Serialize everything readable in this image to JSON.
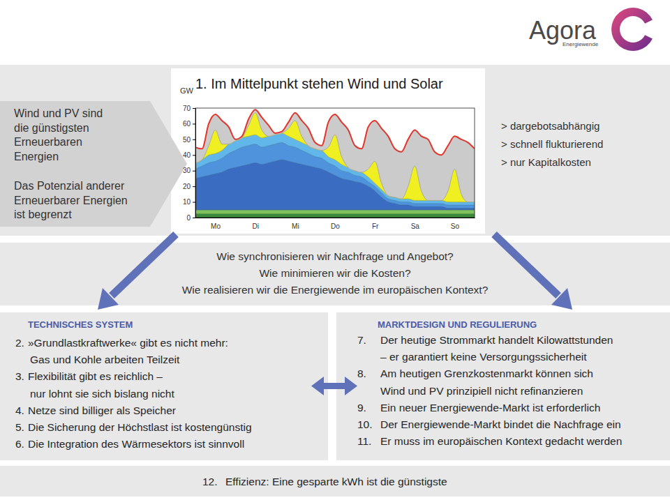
{
  "header": {
    "logo": "Agora",
    "logo_subtitle": "Energiewende"
  },
  "intro": {
    "paragraphs": [
      [
        "Wind und PV sind",
        "die günstigsten",
        "Erneuerbaren",
        "Energien"
      ],
      [
        "Das Potenzial anderer",
        "Erneuerbarer Energien",
        "ist begrenzt"
      ]
    ]
  },
  "chart_data": {
    "type": "area",
    "title": "1. Im Mittelpunkt stehen Wind und Solar",
    "y_label": "GW",
    "stacked": true,
    "x": [
      0,
      4,
      8,
      12,
      16,
      20,
      24,
      28,
      32,
      36,
      40,
      44,
      48,
      52,
      56,
      60,
      64,
      68,
      72,
      76,
      80,
      84,
      88,
      92,
      96,
      100,
      104,
      108,
      112,
      116,
      120,
      124,
      128,
      132,
      136,
      140,
      144,
      148,
      152,
      156,
      160,
      164,
      168
    ],
    "xlim": [
      0,
      168
    ],
    "xticks": [
      {
        "value": 12,
        "label": "Mo"
      },
      {
        "value": 36,
        "label": "Di"
      },
      {
        "value": 60,
        "label": "Mi"
      },
      {
        "value": 84,
        "label": "Do"
      },
      {
        "value": 108,
        "label": "Fr"
      },
      {
        "value": 132,
        "label": "Sa"
      },
      {
        "value": 156,
        "label": "So"
      }
    ],
    "ylim": [
      0,
      70
    ],
    "yticks": [
      0,
      10,
      20,
      30,
      40,
      50,
      60,
      70
    ],
    "series": [
      {
        "color": "#3b8a3b",
        "values": [
          2.5,
          2.5,
          2.5,
          2.5,
          2.5,
          2.5,
          2.5,
          2.5,
          2.5,
          2.5,
          2.5,
          2.5,
          2.5,
          2.5,
          2.5,
          2.5,
          2.5,
          2.5,
          2.5,
          2.5,
          2.5,
          2.5,
          2.5,
          2.5,
          2.5,
          2.5,
          2.5,
          2.5,
          2.5,
          2.5,
          2.5,
          2.5,
          2.5,
          2.5,
          2.5,
          2.5,
          2.5,
          2.5,
          2.5,
          2.5,
          2.5,
          2.5,
          2.5
        ]
      },
      {
        "color": "#7fc35f",
        "values": [
          2.5,
          2.5,
          2.5,
          2.5,
          2.5,
          2.5,
          2.5,
          2.5,
          2.5,
          2.5,
          2.5,
          2.5,
          2.5,
          2.5,
          2.5,
          2.5,
          2.5,
          2.5,
          2.5,
          2.5,
          2.5,
          2.5,
          2.5,
          2.5,
          2.5,
          2.5,
          2.5,
          2.5,
          2.5,
          2.5,
          2.5,
          2.5,
          2.5,
          2.5,
          2.5,
          2.5,
          2.5,
          2.5,
          2.5,
          2.5,
          2.5,
          2.5,
          2.5
        ]
      },
      {
        "color": "#3a6cc2",
        "values": [
          20,
          21,
          22,
          23,
          24,
          26,
          27,
          28,
          29,
          30,
          29,
          30,
          31,
          32,
          31,
          30,
          29,
          28,
          27,
          26,
          24,
          22,
          20,
          19,
          18,
          17,
          15,
          12,
          8,
          5,
          4,
          3,
          3,
          2,
          2,
          2,
          2,
          2,
          1,
          1,
          1,
          1,
          1
        ]
      },
      {
        "color": "#4e93dc",
        "values": [
          6,
          7,
          8,
          8,
          9,
          10,
          11,
          12,
          12,
          12,
          11,
          11,
          11,
          11,
          10,
          10,
          9,
          8,
          7,
          7,
          6,
          6,
          5,
          5,
          4,
          4,
          3,
          3,
          3,
          2,
          2,
          2,
          2,
          2,
          2,
          2,
          2,
          2,
          2,
          2,
          2,
          2,
          2
        ]
      },
      {
        "color": "#62b7ea",
        "values": [
          4,
          4,
          5,
          5,
          5,
          6,
          6,
          6,
          6,
          6,
          6,
          6,
          6,
          6,
          6,
          5,
          5,
          5,
          5,
          5,
          4,
          4,
          4,
          3,
          3,
          3,
          3,
          2,
          2,
          2,
          2,
          2,
          2,
          2,
          2,
          2,
          2,
          2,
          2,
          2,
          2,
          2,
          2
        ]
      },
      {
        "color": "#f0ef22",
        "values": [
          0,
          0,
          6,
          15,
          4,
          0,
          0,
          0,
          7,
          14,
          5,
          0,
          0,
          0,
          5,
          12,
          4,
          0,
          0,
          0,
          6,
          16,
          5,
          0,
          0,
          0,
          5,
          14,
          4,
          0,
          0,
          0,
          8,
          22,
          6,
          0,
          0,
          0,
          7,
          21,
          5,
          0,
          0
        ]
      },
      {
        "color": "#cbcbcb",
        "values": [
          10,
          7,
          14,
          10,
          15,
          11,
          1,
          1,
          4,
          2,
          8,
          7,
          1,
          1,
          4,
          5,
          10,
          11,
          4,
          3,
          16,
          13,
          22,
          24,
          16,
          15,
          27,
          26,
          35,
          38,
          31,
          30,
          30,
          23,
          35,
          39,
          31,
          29,
          29,
          21,
          35,
          38,
          34
        ]
      },
      {
        "type": "line",
        "color": "#e2352b",
        "values": [
          45,
          44,
          60,
          66,
          62,
          58,
          50,
          52,
          63,
          69,
          64,
          59,
          54,
          55,
          61,
          67,
          62,
          57,
          48,
          46,
          61,
          66,
          61,
          56,
          46,
          44,
          58,
          62,
          57,
          52,
          44,
          42,
          50,
          56,
          52,
          50,
          42,
          40,
          46,
          52,
          50,
          48,
          44
        ]
      }
    ]
  },
  "properties": [
    "> dargebotsabhängig",
    "> schnell flukturierend",
    "> nur Kapitalkosten"
  ],
  "questions": [
    "Wie synchronisieren wir Nachfrage und Angebot?",
    "Wie minimieren wir die Kosten?",
    "Wie realisieren wir die Energiewende im europäischen Kontext?"
  ],
  "sections": [
    {
      "heading": "TECHNISCHES SYSTEM",
      "items": [
        {
          "number": "2.",
          "lines": [
            "»Grundlastkraftwerke« gibt es nicht mehr:",
            "Gas und Kohle arbeiten Teilzeit"
          ]
        },
        {
          "number": "3.",
          "lines": [
            "Flexibilität gibt es reichlich –",
            "nur lohnt sie sich bislang nicht"
          ]
        },
        {
          "number": "4.",
          "lines": [
            "Netze sind billiger als Speicher"
          ]
        },
        {
          "number": "5.",
          "lines": [
            "Die Sicherung der Höchstlast ist kostengünstig"
          ]
        },
        {
          "number": "6.",
          "lines": [
            "Die Integration des Wärmesektors ist sinnvoll"
          ]
        }
      ]
    },
    {
      "heading": "MARKTDESIGN UND REGULIERUNG",
      "items": [
        {
          "number": "7.",
          "lines": [
            "Der heutige Strommarkt handelt Kilowattstunden",
            "– er garantiert keine Versorgungssicherheit"
          ]
        },
        {
          "number": "8.",
          "lines": [
            "Am heutigen Grenzkostenmarkt können sich",
            "Wind und PV prinzipiell nicht refinanzieren"
          ]
        },
        {
          "number": "9.",
          "lines": [
            "Ein neuer Energiewende-Markt ist erforderlich"
          ]
        },
        {
          "number": "10.",
          "lines": [
            "Der Energiewende-Markt bindet die Nachfrage ein"
          ]
        },
        {
          "number": "11.",
          "lines": [
            "Er muss im europäischen Kontext gedacht werden"
          ]
        }
      ]
    }
  ],
  "footer": {
    "number": "12.",
    "text": "Effizienz: Eine gesparte kWh ist die günstigste"
  }
}
